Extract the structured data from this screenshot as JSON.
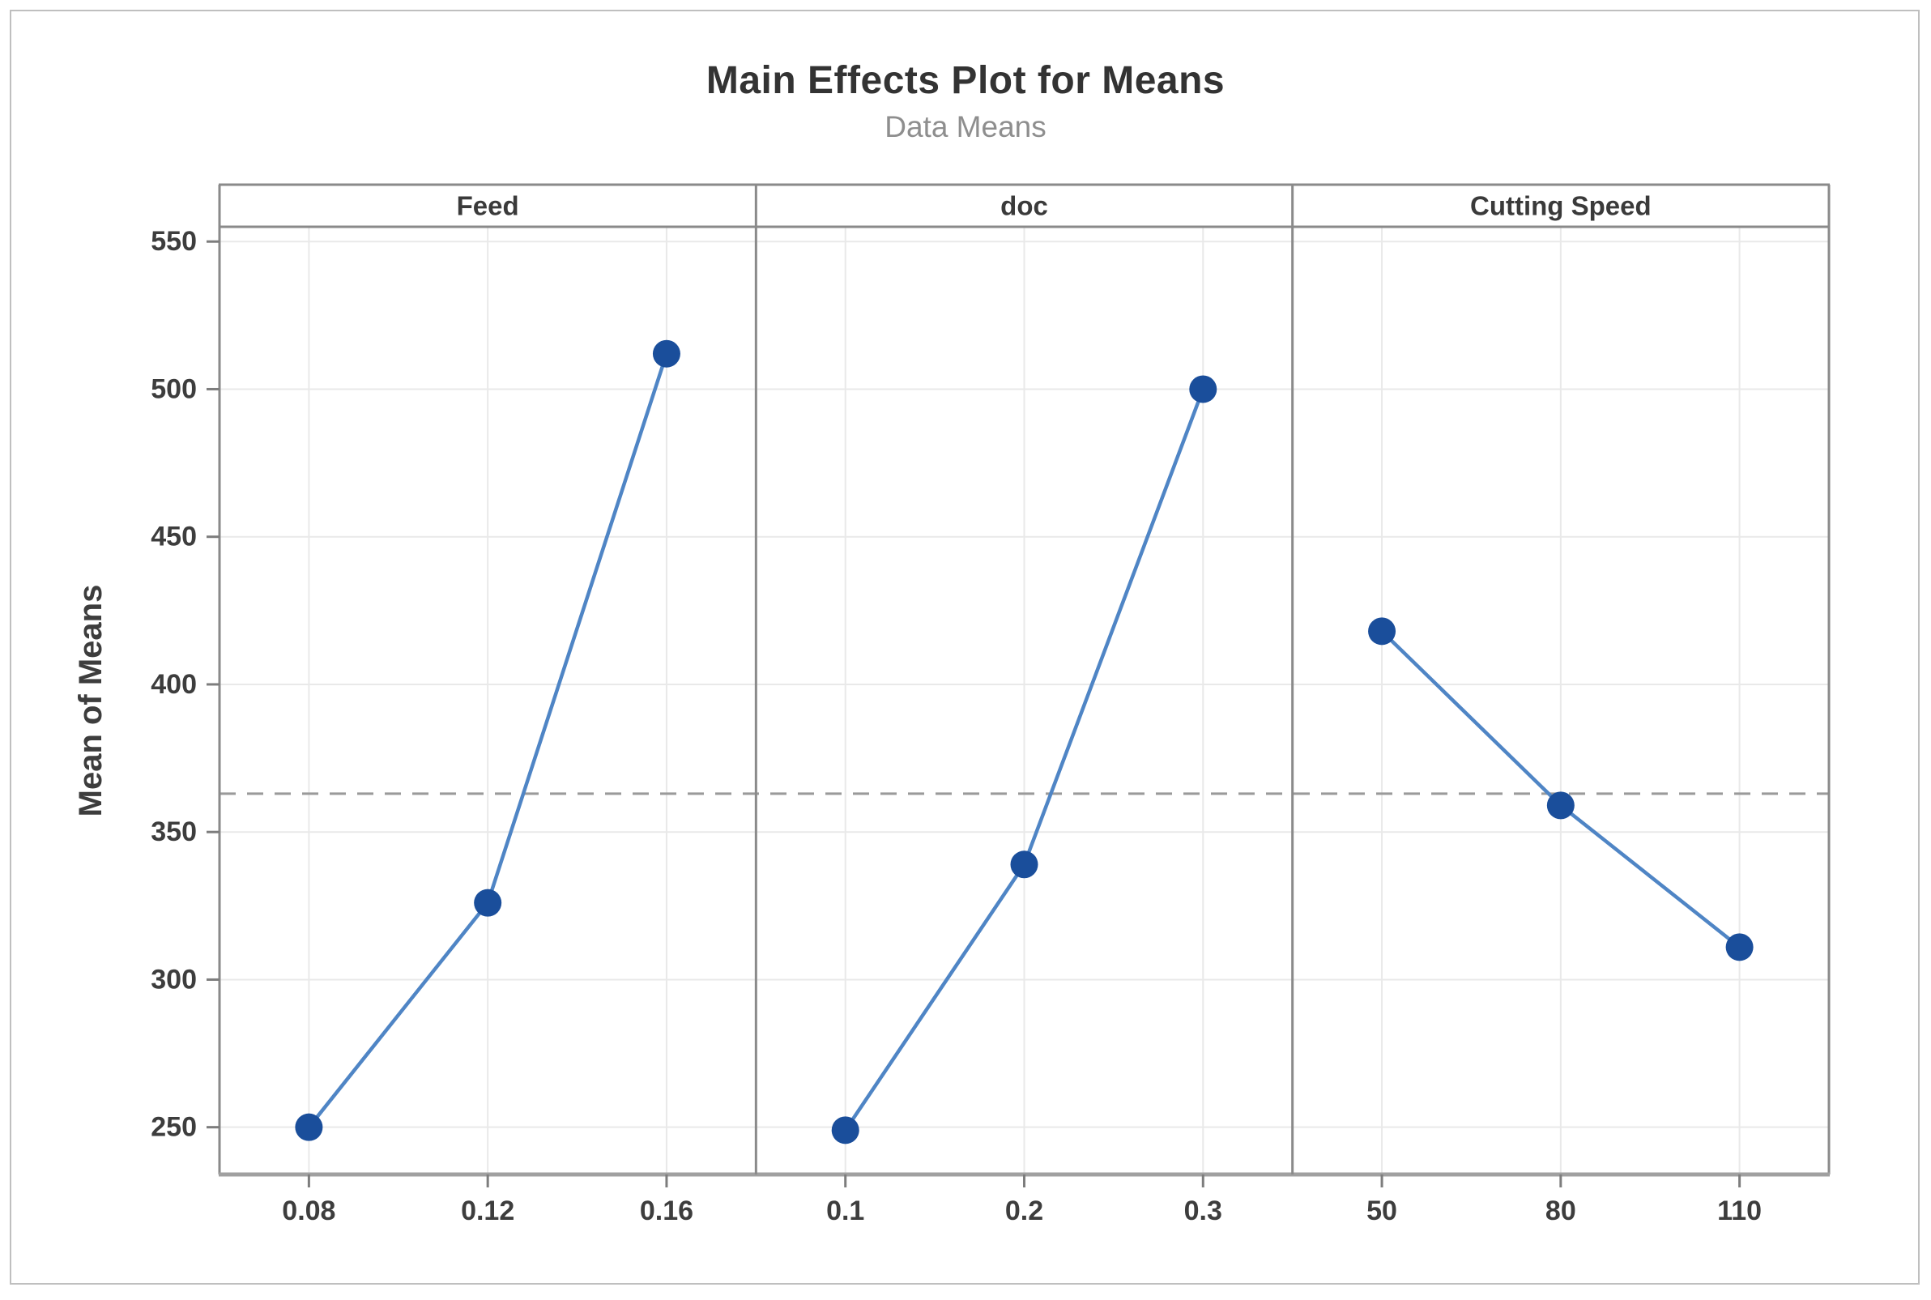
{
  "figure": {
    "title": "Main Effects Plot for Means",
    "subtitle": "Data Means"
  },
  "chart_data": {
    "type": "line",
    "title": "Main Effects Plot for Means",
    "subtitle": "Data Means",
    "ylabel": "Mean of Means",
    "xlabel": "",
    "y_ticks": [
      250,
      300,
      350,
      400,
      450,
      500,
      550
    ],
    "ylim": [
      234,
      555
    ],
    "grid": true,
    "legend": "none",
    "reference_line_value": 363,
    "panels": [
      {
        "label": "Feed",
        "categories": [
          "0.08",
          "0.12",
          "0.16"
        ],
        "values": [
          250,
          326,
          512
        ]
      },
      {
        "label": "doc",
        "categories": [
          "0.1",
          "0.2",
          "0.3"
        ],
        "values": [
          249,
          339,
          500
        ]
      },
      {
        "label": "Cutting Speed",
        "categories": [
          "50",
          "80",
          "110"
        ],
        "values": [
          418,
          359,
          311
        ]
      }
    ],
    "colors": {
      "line": "#4f85c5",
      "marker": "#1a4e9b",
      "reference": "#9a9a9a",
      "grid": "#e9e9e9",
      "frame": "#8a8a8a",
      "axis_bottom": "#a0a0a0",
      "tick": "#7d7d7d",
      "label_text": "#3d3d3d",
      "header_text": "#3a3a3a"
    }
  }
}
